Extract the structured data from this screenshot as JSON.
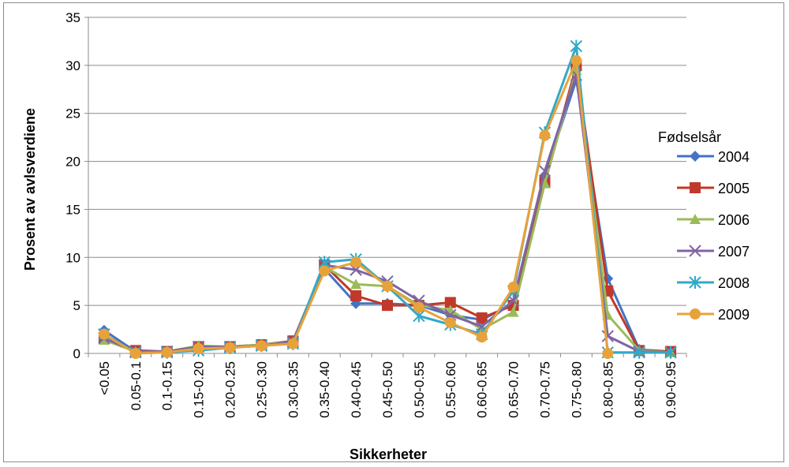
{
  "chart_data": {
    "type": "line",
    "xlabel": "Sikkerheter",
    "ylabel": "Prosent av avlsverdiene",
    "ylim": [
      0,
      35
    ],
    "yticks": [
      0,
      5,
      10,
      15,
      20,
      25,
      30,
      35
    ],
    "grid": "horizontal",
    "legend_title": "Fødselsår",
    "legend_position": "right",
    "categories": [
      "<0.05",
      "0.05-0.1",
      "0.1-0.15",
      "0.15-0.20",
      "0.20-0.25",
      "0.25-0.30",
      "0.30-0.35",
      "0.35-0.40",
      "0.40-0.45",
      "0.45-0.50",
      "0.50-0.55",
      "0.55-0.60",
      "0.60-0.65",
      "0.65-0.70",
      "0.70-0.75",
      "0.75-0.80",
      "0.80-0.85",
      "0.85-0.90",
      "0.90-0.95"
    ],
    "series": [
      {
        "name": "2004",
        "color": "#4472C4",
        "marker": "diamond",
        "values": [
          2.4,
          0.2,
          0.2,
          0.6,
          0.7,
          0.8,
          1.3,
          8.8,
          5.2,
          5.2,
          5.0,
          4.0,
          3.5,
          5.2,
          18.5,
          28.5,
          7.8,
          0.4,
          0.2
        ]
      },
      {
        "name": "2005",
        "color": "#C0392B",
        "marker": "square",
        "values": [
          1.6,
          0.3,
          0.2,
          0.7,
          0.7,
          0.9,
          1.3,
          9.2,
          6.0,
          5.0,
          5.0,
          5.3,
          3.7,
          5.0,
          17.8,
          30.0,
          6.5,
          0.3,
          0.2
        ]
      },
      {
        "name": "2006",
        "color": "#9BBB59",
        "marker": "triangle",
        "values": [
          1.4,
          0.2,
          0.2,
          0.8,
          0.7,
          0.9,
          1.2,
          9.0,
          7.2,
          7.0,
          5.0,
          4.5,
          2.5,
          4.3,
          17.7,
          29.5,
          4.0,
          0.3,
          0.1
        ]
      },
      {
        "name": "2007",
        "color": "#8064A2",
        "marker": "x",
        "values": [
          1.6,
          0.2,
          0.2,
          0.7,
          0.7,
          0.8,
          1.2,
          9.2,
          8.7,
          7.5,
          5.5,
          4.0,
          2.8,
          5.5,
          19.0,
          29.0,
          1.8,
          0.2,
          0.1
        ]
      },
      {
        "name": "2008",
        "color": "#31A9C8",
        "marker": "star",
        "values": [
          2.0,
          0.1,
          0.1,
          0.3,
          0.6,
          0.8,
          1.0,
          9.5,
          9.8,
          7.0,
          3.9,
          3.0,
          2.0,
          6.5,
          23.0,
          32.0,
          0.1,
          0.1,
          0.1
        ]
      },
      {
        "name": "2009",
        "color": "#E8A23A",
        "marker": "circle",
        "values": [
          2.0,
          0.0,
          0.1,
          0.5,
          0.6,
          0.8,
          1.0,
          8.6,
          9.5,
          7.0,
          4.8,
          3.2,
          1.7,
          6.9,
          22.7,
          30.5,
          0.0,
          null,
          null
        ]
      }
    ]
  }
}
